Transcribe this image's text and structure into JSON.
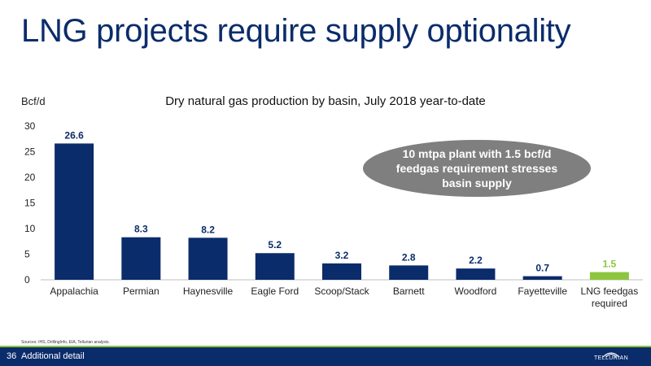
{
  "slide": {
    "title": "LNG projects require supply optionality",
    "sources": "Sources: IHS, DrillingInfo, EIA, Tellurian analysis.",
    "page_number": "36",
    "section": "Additional detail",
    "logo_text": "TELLURIAN"
  },
  "callout": {
    "text": "10 mtpa plant with 1.5 bcf/d feedgas requirement stresses basin supply"
  },
  "chart_data": {
    "type": "bar",
    "title": "Dry natural gas production by basin, July 2018 year-to-date",
    "ylabel": "Bcf/d",
    "xlabel": "",
    "ylim": [
      0,
      30
    ],
    "yticks": [
      0,
      5,
      10,
      15,
      20,
      25,
      30
    ],
    "categories": [
      "Appalachia",
      "Permian",
      "Haynesville",
      "Eagle Ford",
      "Scoop/Stack",
      "Barnett",
      "Woodford",
      "Fayetteville",
      "LNG feedgas required"
    ],
    "values": [
      26.6,
      8.3,
      8.2,
      5.2,
      3.2,
      2.8,
      2.2,
      0.7,
      1.5
    ],
    "value_labels": [
      "26.6",
      "8.3",
      "8.2",
      "5.2",
      "3.2",
      "2.8",
      "2.2",
      "0.7",
      "1.5"
    ],
    "colors": {
      "basin": "#0B2C6B",
      "highlight": "#8CC63F",
      "title": "#0B2C6B",
      "callout": "#7F7F7F"
    },
    "highlight_index": 8,
    "grid": false,
    "legend": "none"
  }
}
